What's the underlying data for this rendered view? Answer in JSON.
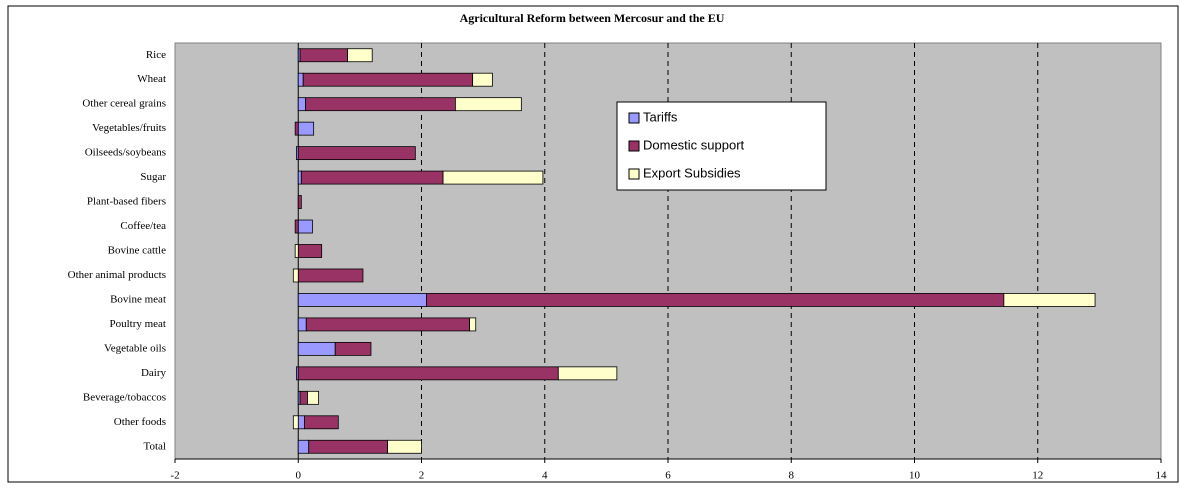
{
  "chart_data": {
    "type": "bar",
    "orientation": "horizontal",
    "stacked": true,
    "title": "Agricultural Reform between Mercosur and the EU",
    "categories": [
      "Rice",
      "Wheat",
      "Other cereal grains",
      "Vegetables/fruits",
      "Oilseeds/soybeans",
      "Sugar",
      "Plant-based fibers",
      "Coffee/tea",
      "Bovine cattle",
      "Other animal products",
      "Bovine meat",
      "Poultry meat",
      "Vegetable oils",
      "Dairy",
      "Beverage/tobaccos",
      "Other foods",
      "Total"
    ],
    "series": [
      {
        "name": "Tariffs",
        "color": "#9999ff",
        "values": [
          0.03,
          0.08,
          0.12,
          0.25,
          -0.03,
          0.05,
          0,
          0.23,
          0,
          0,
          2.08,
          0.13,
          0.6,
          -0.03,
          0.03,
          0.1,
          0.17
        ]
      },
      {
        "name": "Domestic support",
        "color": "#993366",
        "values": [
          0.77,
          2.75,
          2.43,
          -0.05,
          1.9,
          2.3,
          0.05,
          -0.05,
          0.38,
          1.05,
          9.37,
          2.65,
          0.58,
          4.22,
          0.12,
          0.55,
          1.28
        ]
      },
      {
        "name": "Export Subsidies",
        "color": "#ffffcc",
        "values": [
          0.4,
          0.32,
          1.07,
          0,
          0,
          1.62,
          0,
          0,
          -0.05,
          -0.08,
          1.48,
          0.1,
          0,
          0.95,
          0.18,
          -0.08,
          0.55
        ]
      }
    ],
    "xlim": [
      -2,
      14
    ],
    "xticks": [
      -2,
      0,
      2,
      4,
      6,
      8,
      10,
      12,
      14
    ],
    "grid": true,
    "legend": "upper center"
  }
}
